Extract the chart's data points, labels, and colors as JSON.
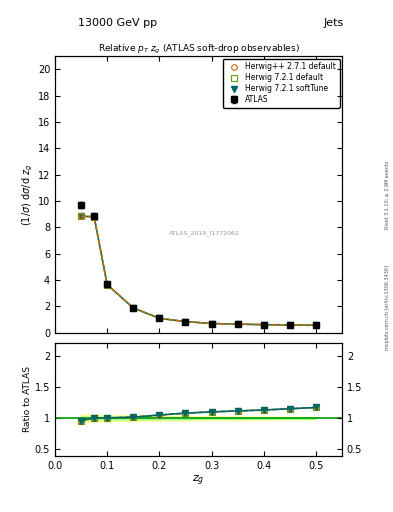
{
  "title_top": "13000 GeV pp",
  "title_right": "Jets",
  "plot_title": "Relative $p_T$ $z_g$ (ATLAS soft-drop observables)",
  "xlabel": "$z_g$",
  "ylabel_main": "$(1/\\sigma)$ d$\\sigma$/d $z_g$",
  "ylabel_ratio": "Ratio to ATLAS",
  "watermark": "ATLAS_2019_I1772062",
  "right_label": "mcplots.cern.ch [arXiv:1306.3436]",
  "rivet_label": "Rivet 3.1.10; ≥ 2.9M events",
  "zg_data": [
    0.05,
    0.075,
    0.1,
    0.15,
    0.2,
    0.25,
    0.3,
    0.35,
    0.4,
    0.45,
    0.5
  ],
  "atlas_values": [
    9.7,
    8.9,
    3.7,
    1.9,
    1.1,
    0.85,
    0.7,
    0.65,
    0.62,
    0.6,
    0.58
  ],
  "atlas_errors": [
    0.25,
    0.18,
    0.09,
    0.06,
    0.035,
    0.025,
    0.02,
    0.018,
    0.016,
    0.014,
    0.013
  ],
  "hw_pp_values": [
    8.85,
    8.82,
    3.66,
    1.89,
    1.1,
    0.855,
    0.705,
    0.658,
    0.618,
    0.597,
    0.577
  ],
  "hw72_values": [
    8.85,
    8.82,
    3.66,
    1.89,
    1.1,
    0.855,
    0.705,
    0.658,
    0.618,
    0.597,
    0.577
  ],
  "hw72s_values": [
    8.85,
    8.82,
    3.66,
    1.89,
    1.1,
    0.855,
    0.705,
    0.658,
    0.618,
    0.597,
    0.577
  ],
  "ratio_hw_pp": [
    0.955,
    1.005,
    1.005,
    1.015,
    1.05,
    1.08,
    1.1,
    1.115,
    1.13,
    1.15,
    1.17
  ],
  "ratio_hw72": [
    0.96,
    1.005,
    1.005,
    1.015,
    1.05,
    1.08,
    1.1,
    1.115,
    1.13,
    1.15,
    1.17
  ],
  "ratio_hw72s": [
    0.96,
    1.005,
    1.005,
    1.015,
    1.05,
    1.08,
    1.1,
    1.115,
    1.13,
    1.15,
    1.17
  ],
  "atlas_band_upper_stat": [
    1.025,
    1.02,
    1.02,
    1.018,
    1.016,
    1.014,
    1.013,
    1.012,
    1.011,
    1.01,
    1.01
  ],
  "atlas_band_lower_stat": [
    0.975,
    0.98,
    0.98,
    0.982,
    0.984,
    0.986,
    0.987,
    0.988,
    0.989,
    0.99,
    0.99
  ],
  "atlas_band_upper_tot": [
    1.06,
    1.055,
    1.05,
    1.045,
    1.04,
    1.035,
    1.03,
    1.028,
    1.025,
    1.022,
    1.02
  ],
  "atlas_band_lower_tot": [
    0.94,
    0.945,
    0.95,
    0.955,
    0.96,
    0.965,
    0.97,
    0.972,
    0.975,
    0.978,
    0.98
  ],
  "color_atlas": "#000000",
  "color_hwpp": "#cc6600",
  "color_hw72": "#669900",
  "color_hw72s": "#006666",
  "xlim": [
    0.0,
    0.55
  ],
  "ylim_main": [
    0,
    21
  ],
  "ylim_ratio": [
    0.4,
    2.2
  ],
  "yticks_ratio": [
    0.5,
    1.0,
    1.5,
    2.0
  ],
  "band_color_yellow": "#ffff99",
  "band_color_green": "#99ff99"
}
